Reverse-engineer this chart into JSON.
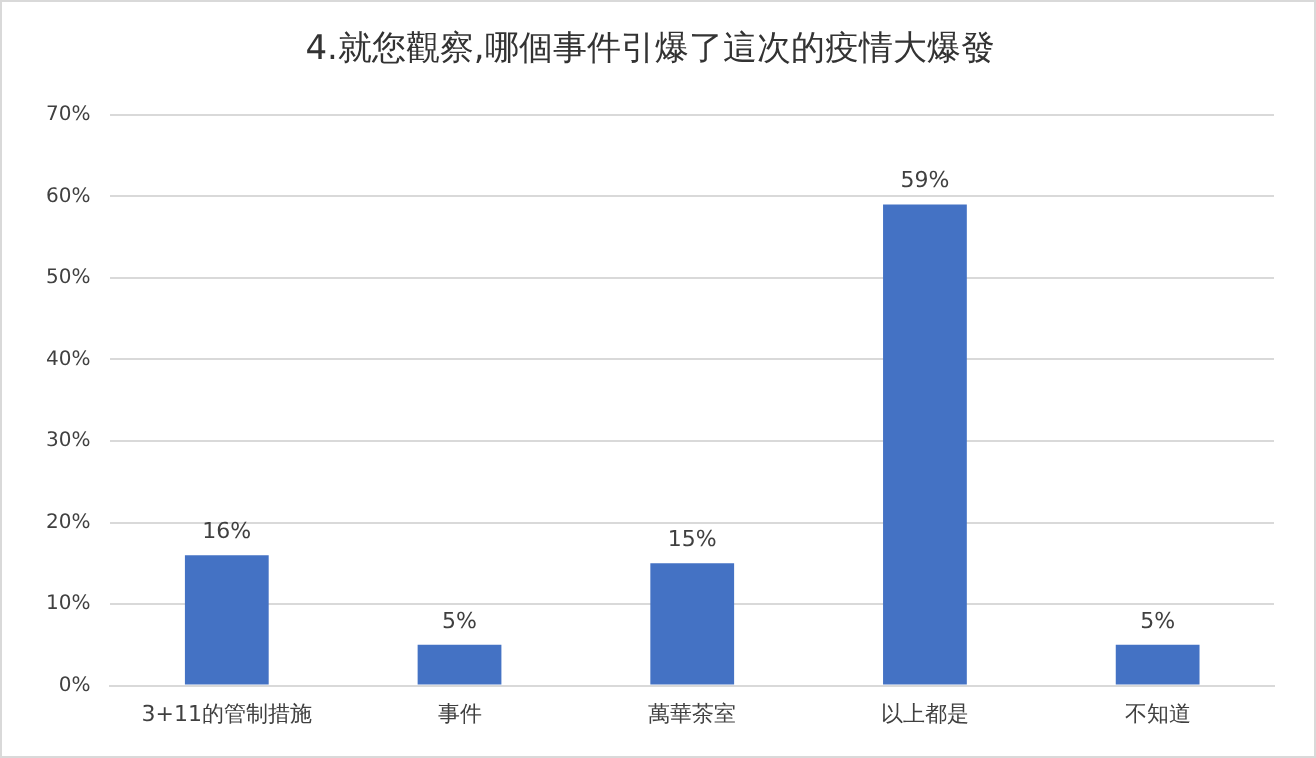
{
  "chart_data": {
    "type": "bar",
    "title": "4.就您觀察,哪個事件引爆了這次的疫情大爆發",
    "categories": [
      "3+11的管制措施",
      "事件",
      "萬華茶室",
      "以上都是",
      "不知道"
    ],
    "values": [
      16,
      5,
      15,
      59,
      5
    ],
    "value_labels": [
      "16%",
      "5%",
      "15%",
      "59%",
      "5%"
    ],
    "color": "#4472c4",
    "ylim": [
      0,
      70
    ],
    "yticks": [
      {
        "value": 0,
        "label": "0%"
      },
      {
        "value": 10,
        "label": "10%"
      },
      {
        "value": 20,
        "label": "20%"
      },
      {
        "value": 30,
        "label": "30%"
      },
      {
        "value": 40,
        "label": "40%"
      },
      {
        "value": 50,
        "label": "50%"
      },
      {
        "value": 60,
        "label": "60%"
      },
      {
        "value": 70,
        "label": "70%"
      }
    ],
    "grid": "y"
  }
}
